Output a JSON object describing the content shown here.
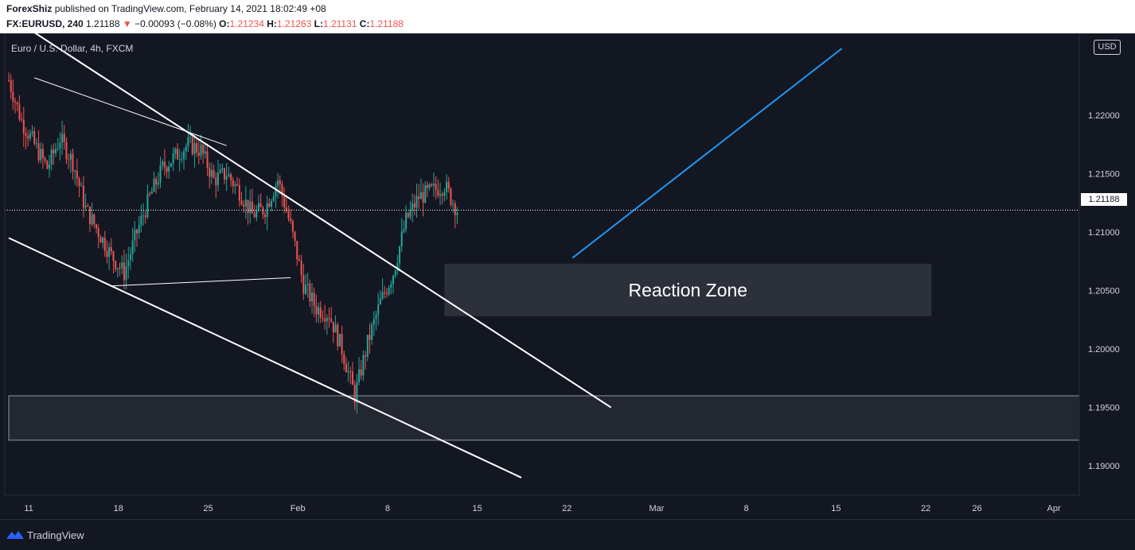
{
  "header": {
    "author": "ForexShiz",
    "published": " published on TradingView.com, February 14, 2021 18:02:49 +08",
    "symbol": "FX:EURUSD, 240",
    "last": " 1.21188 ",
    "change_arrow": "▼",
    "change": " −0.00093 (−0.08%) ",
    "o_label": "O:",
    "o_value": "1.21234",
    "h_label": " H:",
    "h_value": "1.21263",
    "l_label": " L:",
    "l_value": "1.21131",
    "c_label": " C:",
    "c_value": "1.21188"
  },
  "symbol_description": "Euro / U.S. Dollar, 4h, FXCM",
  "currency_badge": "USD",
  "last_price_tag": "1.21188",
  "annotation_label": "Reaction Zone",
  "footer": {
    "brand": "TradingView"
  },
  "colors": {
    "background": "#131722",
    "up": "#26a69a",
    "down": "#ef5350",
    "trendline": "#ffffff",
    "projection": "#2196f3",
    "zone": "#2a2e39"
  },
  "chart_data": {
    "type": "candlestick",
    "series": [
      {
        "name": "FX:EURUSD, 240"
      }
    ],
    "y_ticks": [
      "1.22000",
      "1.21500",
      "1.21000",
      "1.20500",
      "1.20000",
      "1.19500",
      "1.19000"
    ],
    "ylim": [
      1.1875,
      1.227
    ],
    "x_ticks": [
      "11",
      "18",
      "25",
      "Feb",
      "8",
      "15",
      "22",
      "Mar",
      "8",
      "15",
      "22",
      "26",
      "Apr"
    ],
    "last_price": 1.21188,
    "zones": [
      {
        "label": "Reaction Zone",
        "from": "2021-02-13",
        "to": "2021-03-23",
        "low": 1.2028,
        "high": 1.2073
      },
      {
        "label": "",
        "from": "2021-01-10",
        "to": "2021-04-05",
        "low": 1.1922,
        "high": 1.196
      }
    ],
    "close_path": [
      [
        "2021-01-10",
        1.223
      ],
      [
        "2021-01-11",
        1.2195
      ],
      [
        "2021-01-13",
        1.2155
      ],
      [
        "2021-01-14",
        1.218
      ],
      [
        "2021-01-15",
        1.216
      ],
      [
        "2021-01-16",
        1.212
      ],
      [
        "2021-01-18",
        1.208
      ],
      [
        "2021-01-19",
        1.2065
      ],
      [
        "2021-01-20",
        1.21
      ],
      [
        "2021-01-21",
        1.213
      ],
      [
        "2021-01-22",
        1.2155
      ],
      [
        "2021-01-24",
        1.2175
      ],
      [
        "2021-01-25",
        1.217
      ],
      [
        "2021-01-26",
        1.2145
      ],
      [
        "2021-01-27",
        1.215
      ],
      [
        "2021-01-28",
        1.2135
      ],
      [
        "2021-01-29",
        1.2115
      ],
      [
        "2021-01-30",
        1.212
      ],
      [
        "2021-01-31",
        1.2145
      ],
      [
        "2021-02-01",
        1.2105
      ],
      [
        "2021-02-02",
        1.2055
      ],
      [
        "2021-02-03",
        1.2035
      ],
      [
        "2021-02-04",
        1.203
      ],
      [
        "2021-02-05",
        1.2
      ],
      [
        "2021-02-06",
        1.196
      ],
      [
        "2021-02-07",
        1.2005
      ],
      [
        "2021-02-08",
        1.204
      ],
      [
        "2021-02-09",
        1.2065
      ],
      [
        "2021-02-10",
        1.211
      ],
      [
        "2021-02-11",
        1.213
      ],
      [
        "2021-02-12",
        1.2135
      ],
      [
        "2021-02-13",
        1.214
      ],
      [
        "2021-02-14",
        1.2119
      ]
    ]
  },
  "drawings": [
    {
      "name": "upper-channel-line",
      "from": [
        "2021-01-10",
        1.2285
      ],
      "to": [
        "2021-02-26",
        1.195
      ],
      "width": 2
    },
    {
      "name": "lower-channel-line",
      "from": [
        "2021-01-10",
        1.2095
      ],
      "to": [
        "2021-02-19",
        1.189
      ],
      "width": 2
    },
    {
      "name": "triangle-upper-line",
      "from": [
        "2021-01-12",
        1.2232
      ],
      "to": [
        "2021-01-27",
        1.2174
      ],
      "width": 1
    },
    {
      "name": "triangle-lower-line",
      "from": [
        "2021-01-18",
        1.2054
      ],
      "to": [
        "2021-02-01",
        1.2061
      ],
      "width": 1
    },
    {
      "name": "projection-line",
      "from": [
        "2021-02-23",
        1.2078
      ],
      "to": [
        "2021-03-16",
        1.2257
      ],
      "width": 2,
      "color": "#2196f3"
    }
  ]
}
